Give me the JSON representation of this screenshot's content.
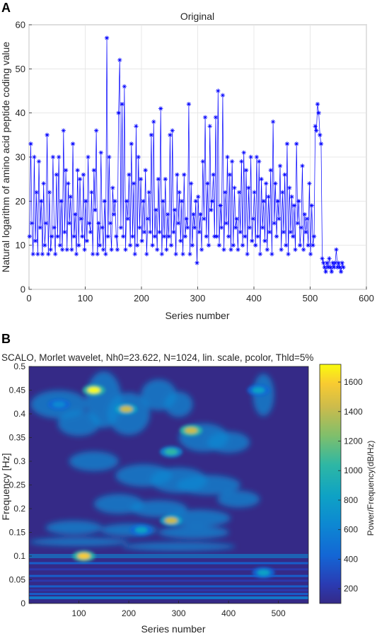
{
  "panel_a": {
    "letter": "A"
  },
  "panel_b": {
    "letter": "B"
  },
  "chart_data": [
    {
      "type": "line",
      "title": "Original",
      "xlabel": "Series number",
      "ylabel": "Natural logarithm of  amino acid peptide coding value",
      "xlim": [
        0,
        600
      ],
      "ylim": [
        0,
        60
      ],
      "xticks": [
        0,
        100,
        200,
        300,
        400,
        500,
        600
      ],
      "yticks": [
        0,
        10,
        20,
        30,
        40,
        50,
        60
      ],
      "grid": true,
      "line_color": "#0000ff",
      "marker": "asterisk",
      "series": [
        {
          "values": [
            12,
            33,
            15,
            8,
            30,
            11,
            22,
            8,
            29,
            14,
            20,
            8,
            24,
            10,
            15,
            35,
            8,
            22,
            9,
            12,
            30,
            14,
            8,
            26,
            12,
            30,
            10,
            20,
            9,
            36,
            13,
            27,
            9,
            24,
            15,
            21,
            9,
            33,
            12,
            17,
            8,
            27,
            10,
            25,
            16,
            12,
            26,
            9,
            20,
            11,
            30,
            15,
            13,
            22,
            8,
            27,
            18,
            36,
            8,
            15,
            10,
            31,
            14,
            9,
            20,
            8,
            57,
            12,
            30,
            15,
            9,
            23,
            17,
            20,
            12,
            9,
            40,
            52,
            14,
            42,
            12,
            46,
            9,
            20,
            16,
            26,
            10,
            33,
            12,
            24,
            8,
            37,
            10,
            30,
            14,
            25,
            11,
            20,
            13,
            27,
            8,
            16,
            22,
            13,
            35,
            10,
            38,
            12,
            18,
            9,
            25,
            13,
            41,
            8,
            20,
            12,
            25,
            9,
            17,
            12,
            35,
            10,
            36,
            13,
            18,
            8,
            26,
            15,
            22,
            11,
            20,
            8,
            26,
            12,
            16,
            14,
            42,
            8,
            24,
            10,
            17,
            14,
            20,
            6,
            21,
            13,
            17,
            9,
            29,
            16,
            39,
            12,
            24,
            10,
            37,
            18,
            20,
            26,
            12,
            39,
            12,
            45,
            10,
            19,
            14,
            44,
            9,
            22,
            15,
            30,
            12,
            26,
            9,
            29,
            10,
            23,
            14,
            16,
            9,
            22,
            13,
            29,
            10,
            31,
            12,
            27,
            8,
            23,
            14,
            30,
            11,
            16,
            22,
            10,
            30,
            12,
            29,
            8,
            25,
            14,
            20,
            11,
            24,
            9,
            21,
            13,
            27,
            8,
            38,
            15,
            24,
            12,
            20,
            16,
            28,
            9,
            22,
            13,
            26,
            10,
            33,
            8,
            23,
            13,
            21,
            12,
            19,
            9,
            33,
            15,
            20,
            10,
            14,
            28,
            9,
            17,
            13,
            16,
            10,
            24,
            8,
            19,
            10,
            12,
            37,
            36,
            42,
            40,
            35,
            33,
            7,
            6,
            5,
            4,
            6,
            5,
            7,
            5,
            4,
            6,
            5,
            6,
            9,
            5,
            6,
            5,
            4,
            6,
            5
          ]
        }
      ]
    },
    {
      "type": "heatmap",
      "title": "SCALO, Morlet wavelet, Nh0=23.622, N=1024, lin. scale, pcolor, Thld=5%",
      "xlabel": "Series number",
      "ylabel": "Frequency [Hz]",
      "xlim": [
        0,
        560
      ],
      "ylim": [
        0,
        0.5
      ],
      "xticks": [
        100,
        200,
        300,
        400,
        500
      ],
      "yticks": [
        0,
        0.05,
        0.1,
        0.15,
        0.2,
        0.25,
        0.3,
        0.35,
        0.4,
        0.45,
        0.5
      ],
      "colorbar": {
        "label": "Power/Frequency(dB/Hz)",
        "ticks": [
          200,
          400,
          600,
          800,
          1000,
          1200,
          1400,
          1600
        ],
        "range": [
          100,
          1720
        ],
        "colormap": "parula"
      },
      "hotspots": [
        {
          "x": 130,
          "freq": 0.45,
          "power": 1650
        },
        {
          "x": 195,
          "freq": 0.41,
          "power": 1300
        },
        {
          "x": 325,
          "freq": 0.365,
          "power": 1400
        },
        {
          "x": 285,
          "freq": 0.32,
          "power": 900
        },
        {
          "x": 285,
          "freq": 0.175,
          "power": 1300
        },
        {
          "x": 225,
          "freq": 0.155,
          "power": 700
        },
        {
          "x": 110,
          "freq": 0.1,
          "power": 1500
        },
        {
          "x": 470,
          "freq": 0.065,
          "power": 650
        },
        {
          "x": 460,
          "freq": 0.45,
          "power": 700
        },
        {
          "x": 60,
          "freq": 0.42,
          "power": 500
        }
      ]
    }
  ]
}
